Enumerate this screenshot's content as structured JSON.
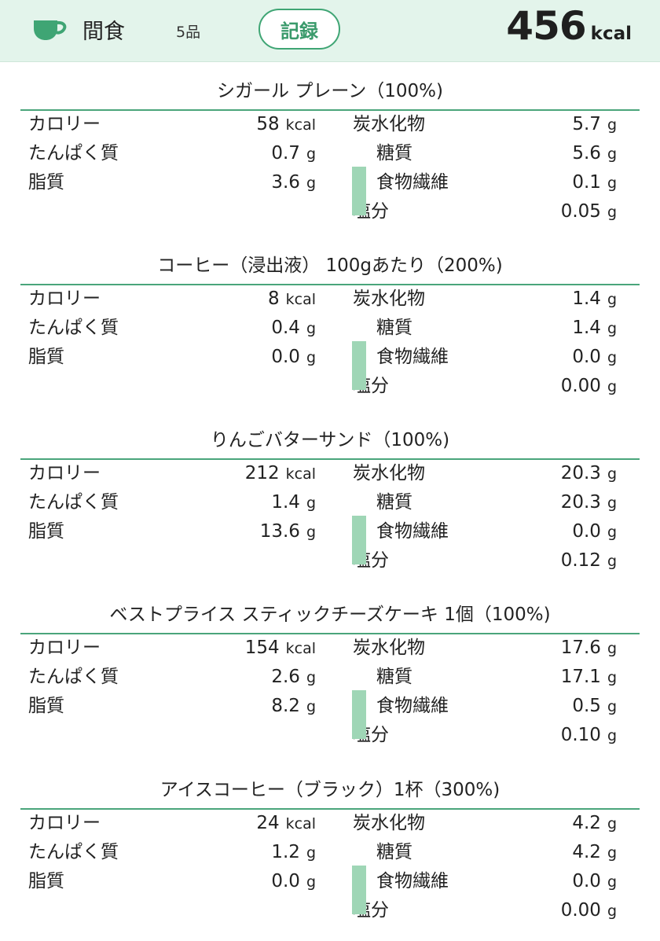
{
  "header": {
    "meal_name": "間食",
    "item_count": "5品",
    "record_label": "記録",
    "total_value": "456",
    "total_unit": "kcal",
    "icon": "cup-icon",
    "accent_color": "#3fa574",
    "header_bg": "#e3f4eb"
  },
  "labels": {
    "calories": "カロリー",
    "protein": "たんぱく質",
    "fat": "脂質",
    "carbs": "炭水化物",
    "sugar": "糖質",
    "fiber": "食物繊維",
    "salt": "塩分"
  },
  "items": [
    {
      "title": "シガール プレーン（100%)",
      "calories": {
        "value": "58",
        "unit": "kcal"
      },
      "protein": {
        "value": "0.7",
        "unit": "g"
      },
      "fat": {
        "value": "3.6",
        "unit": "g"
      },
      "carbs": {
        "value": "5.7",
        "unit": "g"
      },
      "sugar": {
        "value": "5.6",
        "unit": "g"
      },
      "fiber": {
        "value": "0.1",
        "unit": "g"
      },
      "salt": {
        "value": "0.05",
        "unit": "g"
      }
    },
    {
      "title": "コーヒー（浸出液） 100gあたり（200%)",
      "calories": {
        "value": "8",
        "unit": "kcal"
      },
      "protein": {
        "value": "0.4",
        "unit": "g"
      },
      "fat": {
        "value": "0.0",
        "unit": "g"
      },
      "carbs": {
        "value": "1.4",
        "unit": "g"
      },
      "sugar": {
        "value": "1.4",
        "unit": "g"
      },
      "fiber": {
        "value": "0.0",
        "unit": "g"
      },
      "salt": {
        "value": "0.00",
        "unit": "g"
      }
    },
    {
      "title": "りんごバターサンド（100%)",
      "calories": {
        "value": "212",
        "unit": "kcal"
      },
      "protein": {
        "value": "1.4",
        "unit": "g"
      },
      "fat": {
        "value": "13.6",
        "unit": "g"
      },
      "carbs": {
        "value": "20.3",
        "unit": "g"
      },
      "sugar": {
        "value": "20.3",
        "unit": "g"
      },
      "fiber": {
        "value": "0.0",
        "unit": "g"
      },
      "salt": {
        "value": "0.12",
        "unit": "g"
      }
    },
    {
      "title": "ベストプライス スティックチーズケーキ 1個（100%)",
      "calories": {
        "value": "154",
        "unit": "kcal"
      },
      "protein": {
        "value": "2.6",
        "unit": "g"
      },
      "fat": {
        "value": "8.2",
        "unit": "g"
      },
      "carbs": {
        "value": "17.6",
        "unit": "g"
      },
      "sugar": {
        "value": "17.1",
        "unit": "g"
      },
      "fiber": {
        "value": "0.5",
        "unit": "g"
      },
      "salt": {
        "value": "0.10",
        "unit": "g"
      }
    },
    {
      "title": "アイスコーヒー（ブラック）1杯（300%)",
      "calories": {
        "value": "24",
        "unit": "kcal"
      },
      "protein": {
        "value": "1.2",
        "unit": "g"
      },
      "fat": {
        "value": "0.0",
        "unit": "g"
      },
      "carbs": {
        "value": "4.2",
        "unit": "g"
      },
      "sugar": {
        "value": "4.2",
        "unit": "g"
      },
      "fiber": {
        "value": "0.0",
        "unit": "g"
      },
      "salt": {
        "value": "0.00",
        "unit": "g"
      }
    }
  ]
}
